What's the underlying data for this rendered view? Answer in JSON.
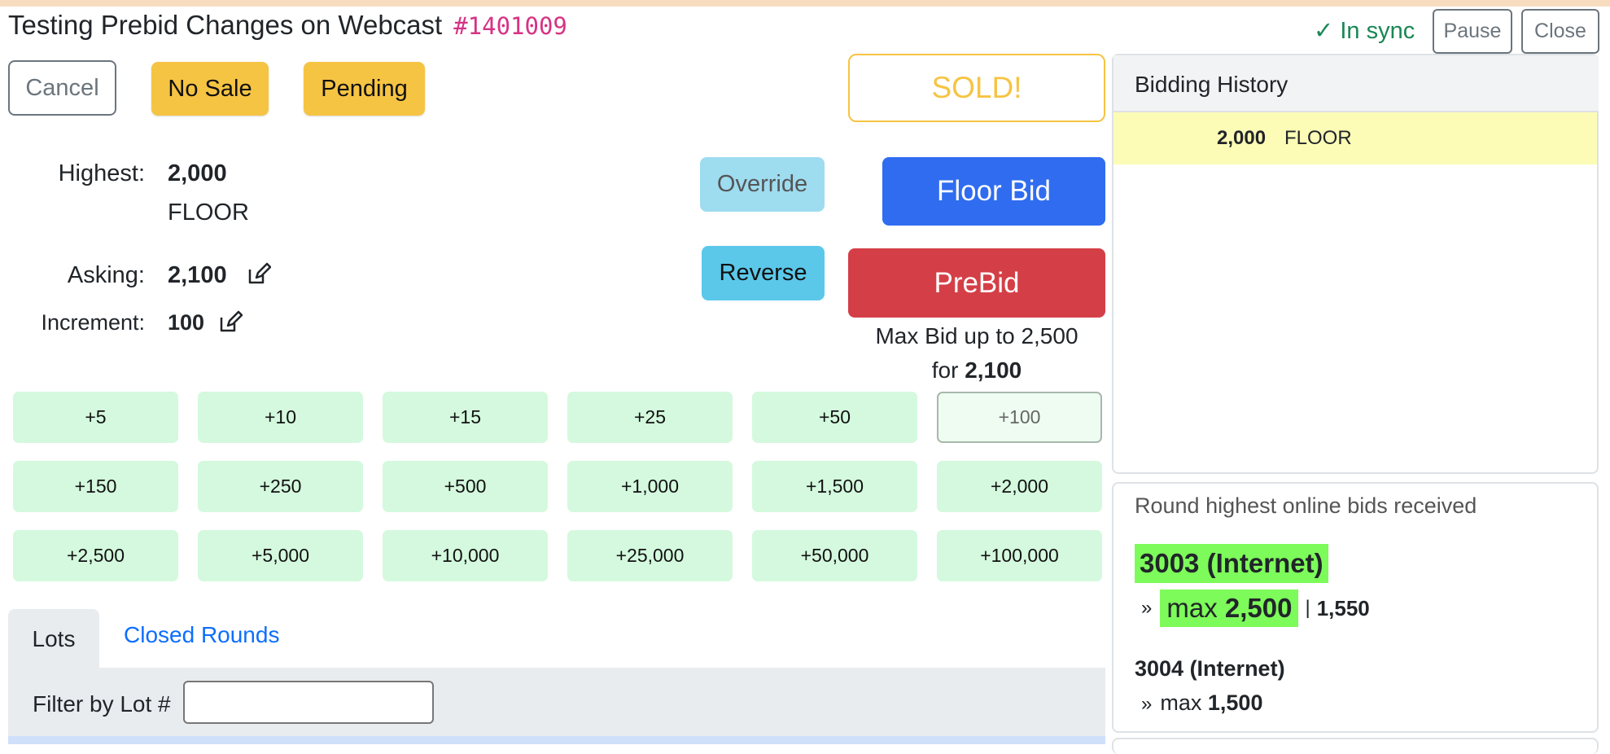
{
  "header": {
    "title": "Testing Prebid Changes on Webcast",
    "lot_ref": "#1401009",
    "sync_status": "✓ In sync",
    "pause_label": "Pause",
    "close_label": "Close"
  },
  "actions": {
    "cancel_label": "Cancel",
    "no_sale_label": "No Sale",
    "pending_label": "Pending",
    "sold_label": "SOLD!"
  },
  "bid_info": {
    "highest_label": "Highest:",
    "highest_value": "2,000",
    "highest_source": "FLOOR",
    "asking_label": "Asking:",
    "asking_value": "2,100",
    "increment_label": "Increment:",
    "increment_value": "100"
  },
  "controls": {
    "override_label": "Override",
    "reverse_label": "Reverse",
    "floor_bid_label": "Floor Bid",
    "prebid_label": "PreBid",
    "max_bid_text": "Max Bid up to 2,500",
    "for_text": "for",
    "for_value": "2,100"
  },
  "increments": [
    "+5",
    "+10",
    "+15",
    "+25",
    "+50",
    "+100",
    "+150",
    "+250",
    "+500",
    "+1,000",
    "+1,500",
    "+2,000",
    "+2,500",
    "+5,000",
    "+10,000",
    "+25,000",
    "+50,000",
    "+100,000"
  ],
  "active_increment": "+100",
  "tabs": {
    "lots_label": "Lots",
    "closed_rounds_label": "Closed Rounds",
    "filter_label": "Filter by Lot #",
    "filter_value": ""
  },
  "bidding_history": {
    "title": "Bidding History",
    "rows": [
      {
        "amount": "2,000",
        "source": "FLOOR"
      }
    ]
  },
  "round_bids": {
    "title": "Round highest online bids received",
    "entries": [
      {
        "bidder": "3003 (Internet)",
        "prefix": "»",
        "max_label": "max",
        "max_value": "2,500",
        "sep": "|",
        "extra": "1,550"
      },
      {
        "bidder": "3004 (Internet)",
        "prefix": "»",
        "max_label": "max",
        "max_value": "1,500"
      }
    ]
  },
  "colors": {
    "accent_blue": "#2f6cf0",
    "prebid_red": "#d43f47",
    "warning_yellow": "#f6c443",
    "increment_green": "#d4f9de",
    "highlight_green": "#7dfb5a",
    "sync_green": "#198754"
  }
}
